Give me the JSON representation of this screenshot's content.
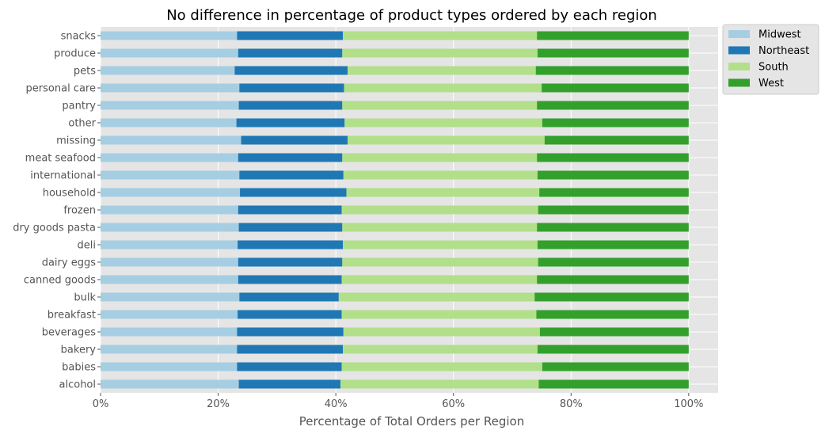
{
  "chart_data": {
    "type": "bar",
    "orientation": "horizontal",
    "stacked": true,
    "title": "No difference in percentage of product types ordered by each region",
    "xlabel": "Percentage of Total Orders per Region",
    "ylabel": "",
    "xlim": [
      0,
      1.05
    ],
    "xticks": [
      0,
      0.2,
      0.4,
      0.6,
      0.8,
      1.0
    ],
    "xtick_labels": [
      "0%",
      "20%",
      "40%",
      "60%",
      "80%",
      "100%"
    ],
    "grid": true,
    "legend_position": "outside-top-right",
    "categories": [
      "snacks",
      "produce",
      "pets",
      "personal care",
      "pantry",
      "other",
      "missing",
      "meat seafood",
      "international",
      "household",
      "frozen",
      "dry goods pasta",
      "deli",
      "dairy eggs",
      "canned goods",
      "bulk",
      "breakfast",
      "beverages",
      "bakery",
      "babies",
      "alcohol"
    ],
    "series": [
      {
        "name": "Midwest",
        "color": "#a6cee3",
        "values": [
          0.232,
          0.234,
          0.228,
          0.236,
          0.235,
          0.231,
          0.239,
          0.234,
          0.236,
          0.237,
          0.234,
          0.235,
          0.233,
          0.234,
          0.234,
          0.236,
          0.233,
          0.232,
          0.232,
          0.232,
          0.235
        ]
      },
      {
        "name": "Northeast",
        "color": "#1f78b4",
        "values": [
          0.18,
          0.177,
          0.192,
          0.178,
          0.176,
          0.184,
          0.181,
          0.177,
          0.177,
          0.181,
          0.176,
          0.176,
          0.179,
          0.177,
          0.176,
          0.169,
          0.177,
          0.181,
          0.18,
          0.178,
          0.173
        ]
      },
      {
        "name": "South",
        "color": "#b2df8a",
        "values": [
          0.33,
          0.332,
          0.32,
          0.336,
          0.331,
          0.336,
          0.335,
          0.331,
          0.33,
          0.328,
          0.334,
          0.331,
          0.331,
          0.333,
          0.332,
          0.333,
          0.331,
          0.334,
          0.331,
          0.341,
          0.337
        ]
      },
      {
        "name": "West",
        "color": "#33a02c",
        "values": [
          0.258,
          0.257,
          0.26,
          0.25,
          0.258,
          0.249,
          0.245,
          0.258,
          0.257,
          0.254,
          0.256,
          0.258,
          0.257,
          0.256,
          0.258,
          0.262,
          0.259,
          0.253,
          0.257,
          0.249,
          0.255
        ]
      }
    ]
  }
}
